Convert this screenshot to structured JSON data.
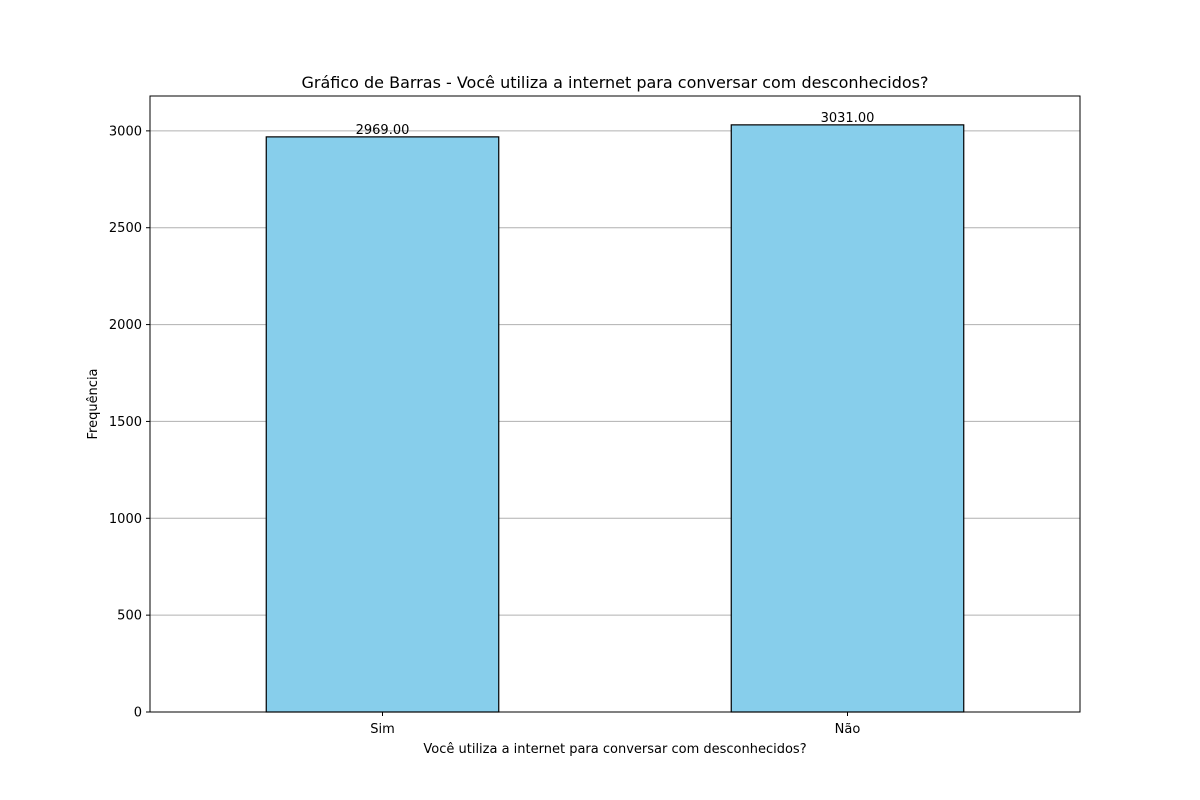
{
  "chart_data": {
    "type": "bar",
    "title": "Gráfico de Barras - Você utiliza a internet para conversar com desconhecidos?",
    "xlabel": "Você utiliza a internet para conversar com desconhecidos?",
    "ylabel": "Frequência",
    "categories": [
      "Sim",
      "Não"
    ],
    "values": [
      2969,
      3031
    ],
    "value_labels": [
      "2969.00",
      "3031.00"
    ],
    "ylim": [
      0,
      3180
    ],
    "yticks": [
      0,
      500,
      1000,
      1500,
      2000,
      2500,
      3000
    ],
    "ytick_labels": [
      "0",
      "500",
      "1000",
      "1500",
      "2000",
      "2500",
      "3000"
    ],
    "grid": "y-axis",
    "bar_color": "#87CEEB",
    "edge_color": "#000000",
    "grid_color": "#b0b0b0"
  }
}
